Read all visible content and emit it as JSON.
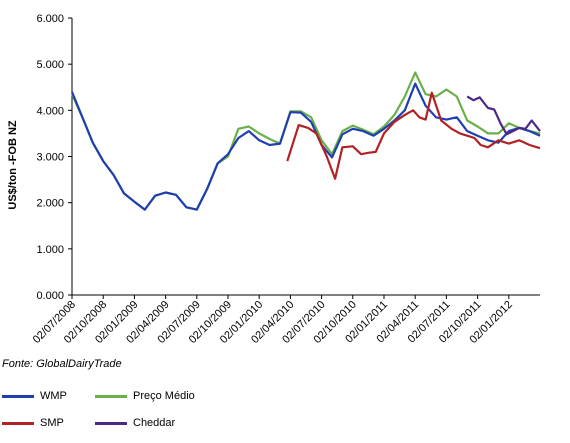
{
  "source": "Fonte: GlobalDairyTrade",
  "legend": [
    {
      "name": "WMP",
      "color": "#1f3fb0"
    },
    {
      "name": "Preço Médio",
      "color": "#6ab04a"
    },
    {
      "name": "SMP",
      "color": "#b22222"
    },
    {
      "name": "Cheddar",
      "color": "#4b2a85"
    }
  ],
  "chart_data": {
    "type": "line",
    "ylabel": "US$/ton -FOB NZ",
    "ylim": [
      0,
      6
    ],
    "yticks": [
      "0.000",
      "1.000",
      "2.000",
      "3.000",
      "4.000",
      "5.000",
      "6.000"
    ],
    "xlim": [
      0,
      45
    ],
    "xticks": [
      {
        "pos": 0,
        "label": "02/07/2008"
      },
      {
        "pos": 3,
        "label": "02/10/2008"
      },
      {
        "pos": 6,
        "label": "02/01/2009"
      },
      {
        "pos": 9,
        "label": "02/04/2009"
      },
      {
        "pos": 12,
        "label": "02/07/2009"
      },
      {
        "pos": 15,
        "label": "02/10/2009"
      },
      {
        "pos": 18,
        "label": "02/01/2010"
      },
      {
        "pos": 21,
        "label": "02/04/2010"
      },
      {
        "pos": 24,
        "label": "02/07/2010"
      },
      {
        "pos": 27,
        "label": "02/10/2010"
      },
      {
        "pos": 30,
        "label": "02/01/2011"
      },
      {
        "pos": 33,
        "label": "02/04/2011"
      },
      {
        "pos": 36,
        "label": "02/07/2011"
      },
      {
        "pos": 39,
        "label": "02/10/2011"
      },
      {
        "pos": 42,
        "label": "02/01/2012"
      }
    ],
    "series": [
      {
        "name": "Preço Médio",
        "color": "#6ab04a",
        "points": [
          [
            0,
            4.35
          ],
          [
            1,
            3.85
          ],
          [
            2,
            3.3
          ],
          [
            3,
            2.9
          ],
          [
            4,
            2.6
          ],
          [
            5,
            2.2
          ],
          [
            6,
            2.02
          ],
          [
            7,
            1.85
          ],
          [
            8,
            2.15
          ],
          [
            9,
            2.22
          ],
          [
            10,
            2.17
          ],
          [
            11,
            1.9
          ],
          [
            12,
            1.85
          ],
          [
            13,
            2.3
          ],
          [
            14,
            2.85
          ],
          [
            15,
            3.0
          ],
          [
            16,
            3.6
          ],
          [
            17,
            3.65
          ],
          [
            18,
            3.5
          ],
          [
            19,
            3.38
          ],
          [
            20,
            3.28
          ],
          [
            21,
            3.98
          ],
          [
            22,
            3.98
          ],
          [
            23,
            3.85
          ],
          [
            24,
            3.35
          ],
          [
            25,
            3.05
          ],
          [
            26,
            3.55
          ],
          [
            27,
            3.67
          ],
          [
            28,
            3.58
          ],
          [
            29,
            3.48
          ],
          [
            30,
            3.65
          ],
          [
            31,
            3.9
          ],
          [
            32,
            4.3
          ],
          [
            33,
            4.82
          ],
          [
            34,
            4.35
          ],
          [
            35,
            4.3
          ],
          [
            36,
            4.45
          ],
          [
            37,
            4.3
          ],
          [
            38,
            3.78
          ],
          [
            39,
            3.65
          ],
          [
            40,
            3.5
          ],
          [
            41,
            3.5
          ],
          [
            42,
            3.72
          ],
          [
            43,
            3.62
          ],
          [
            44,
            3.55
          ],
          [
            45,
            3.5
          ]
        ]
      },
      {
        "name": "WMP",
        "color": "#1f3fb0",
        "points": [
          [
            0,
            4.4
          ],
          [
            1,
            3.85
          ],
          [
            2,
            3.3
          ],
          [
            3,
            2.9
          ],
          [
            4,
            2.6
          ],
          [
            5,
            2.2
          ],
          [
            6,
            2.02
          ],
          [
            7,
            1.85
          ],
          [
            8,
            2.15
          ],
          [
            9,
            2.22
          ],
          [
            10,
            2.17
          ],
          [
            11,
            1.9
          ],
          [
            12,
            1.85
          ],
          [
            13,
            2.3
          ],
          [
            14,
            2.85
          ],
          [
            15,
            3.05
          ],
          [
            16,
            3.4
          ],
          [
            17,
            3.55
          ],
          [
            18,
            3.35
          ],
          [
            19,
            3.25
          ],
          [
            20,
            3.28
          ],
          [
            21,
            3.96
          ],
          [
            22,
            3.95
          ],
          [
            23,
            3.75
          ],
          [
            24,
            3.25
          ],
          [
            25,
            2.98
          ],
          [
            26,
            3.48
          ],
          [
            27,
            3.6
          ],
          [
            28,
            3.55
          ],
          [
            29,
            3.45
          ],
          [
            30,
            3.6
          ],
          [
            31,
            3.78
          ],
          [
            32,
            4.0
          ],
          [
            33,
            4.58
          ],
          [
            34,
            4.1
          ],
          [
            35,
            3.85
          ],
          [
            36,
            3.8
          ],
          [
            37,
            3.85
          ],
          [
            38,
            3.55
          ],
          [
            39,
            3.45
          ],
          [
            40,
            3.35
          ],
          [
            41,
            3.3
          ],
          [
            42,
            3.55
          ],
          [
            43,
            3.62
          ],
          [
            44,
            3.55
          ],
          [
            45,
            3.45
          ]
        ]
      },
      {
        "name": "SMP",
        "color": "#b22222",
        "points": [
          [
            20.7,
            2.9
          ],
          [
            21.8,
            3.68
          ],
          [
            22.7,
            3.62
          ],
          [
            23.5,
            3.5
          ],
          [
            24.5,
            3.0
          ],
          [
            25.3,
            2.52
          ],
          [
            26,
            3.2
          ],
          [
            27,
            3.22
          ],
          [
            27.8,
            3.05
          ],
          [
            28.5,
            3.08
          ],
          [
            29.2,
            3.1
          ],
          [
            30,
            3.5
          ],
          [
            31,
            3.75
          ],
          [
            32,
            3.9
          ],
          [
            32.8,
            4.0
          ],
          [
            33.4,
            3.85
          ],
          [
            34,
            3.8
          ],
          [
            34.6,
            4.38
          ],
          [
            35.5,
            3.78
          ],
          [
            36.5,
            3.6
          ],
          [
            37.3,
            3.5
          ],
          [
            38,
            3.45
          ],
          [
            38.7,
            3.4
          ],
          [
            39.3,
            3.25
          ],
          [
            40,
            3.2
          ],
          [
            41,
            3.35
          ],
          [
            42,
            3.28
          ],
          [
            43,
            3.35
          ],
          [
            44,
            3.25
          ],
          [
            45,
            3.18
          ]
        ]
      },
      {
        "name": "Cheddar",
        "color": "#4b2a85",
        "points": [
          [
            38,
            4.3
          ],
          [
            38.6,
            4.22
          ],
          [
            39.2,
            4.28
          ],
          [
            40,
            4.05
          ],
          [
            40.6,
            4.02
          ],
          [
            41.2,
            3.72
          ],
          [
            41.8,
            3.48
          ],
          [
            42.4,
            3.55
          ],
          [
            43,
            3.62
          ],
          [
            43.6,
            3.6
          ],
          [
            44.2,
            3.78
          ],
          [
            45,
            3.55
          ]
        ]
      }
    ]
  }
}
